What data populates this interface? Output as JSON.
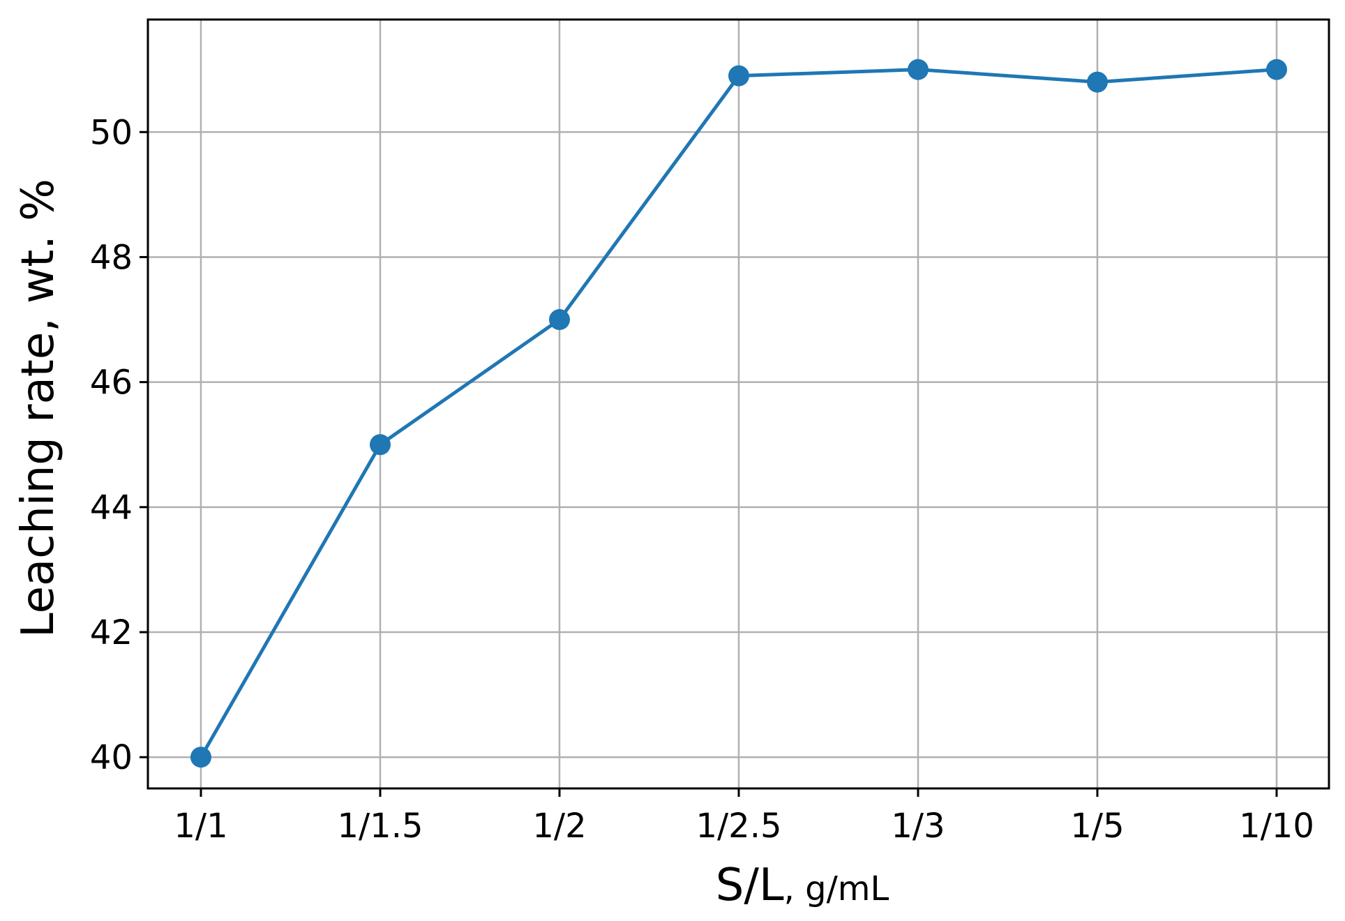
{
  "chart_data": {
    "type": "line",
    "title": "",
    "xlabel": "S/L",
    "xlabel_unit": ", g/mL",
    "ylabel": "Leaching rate, wt. %",
    "categories": [
      "1/1",
      "1/1.5",
      "1/2",
      "1/2.5",
      "1/3",
      "1/5",
      "1/10"
    ],
    "series": [
      {
        "values": [
          40.0,
          45.0,
          47.0,
          50.9,
          51.0,
          50.8,
          51.0
        ],
        "color": "#1f77b4"
      }
    ],
    "ylim": [
      39.5,
      51.8
    ],
    "yticks": [
      40,
      42,
      44,
      46,
      48,
      50
    ],
    "grid": true,
    "legend": "none",
    "colors": {
      "line": "#1f77b4",
      "grid": "#b0b0b0",
      "axes": "#000000"
    }
  }
}
